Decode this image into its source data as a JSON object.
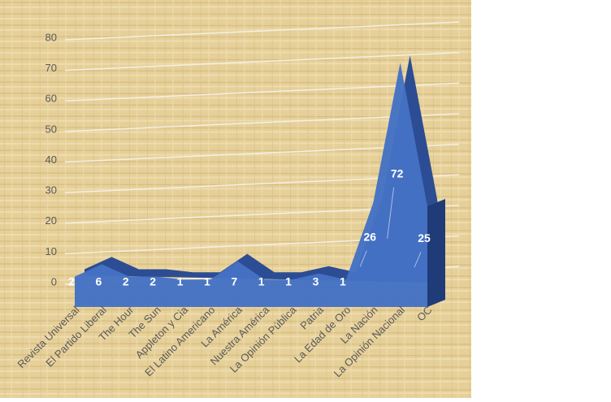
{
  "chart_data": {
    "type": "area",
    "categories": [
      "Revista Universal",
      "El Partido Liberal",
      "The Hour",
      "The Sun",
      "Appleton y Cia",
      "El Latino Americano",
      "La América",
      "Nuestra América",
      "La Opinión Pública",
      "Patria",
      "La Edad de Oro",
      "La Nación",
      "La Opinión Nacional",
      "OC"
    ],
    "values": [
      2,
      6,
      2,
      2,
      1,
      1,
      7,
      1,
      1,
      3,
      1,
      26,
      72,
      25
    ],
    "color": "#4472c4",
    "ylim": [
      0,
      80
    ],
    "yticks": [
      0,
      10,
      20,
      30,
      40,
      50,
      60,
      70,
      80
    ],
    "grid": true
  }
}
